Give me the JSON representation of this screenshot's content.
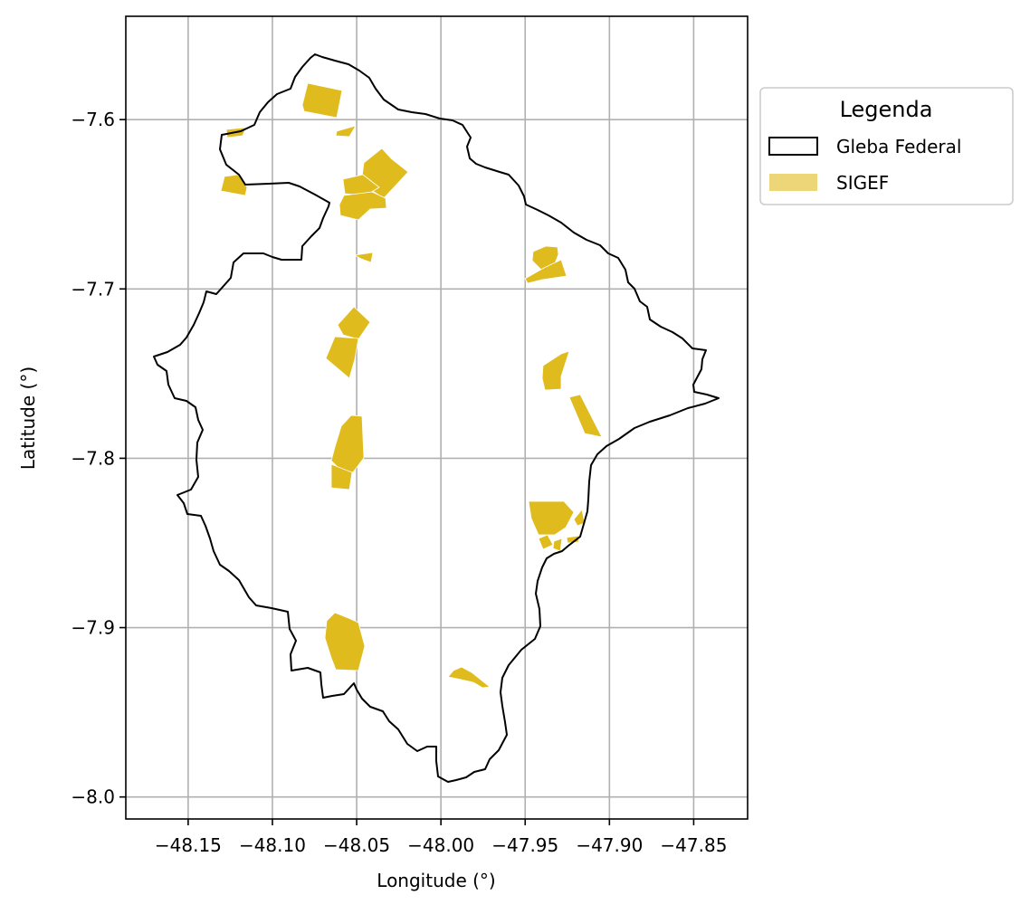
{
  "map": {
    "xlabel": "Longitude (°)",
    "ylabel": "Latitude (°)",
    "x_ticks": [
      -48.15,
      -48.1,
      -48.05,
      -48.0,
      -47.95,
      -47.9,
      -47.85
    ],
    "y_ticks": [
      -7.6,
      -7.7,
      -7.8,
      -7.9,
      -8.0
    ],
    "x_tick_labels": [
      "−48.15",
      "−48.10",
      "−48.05",
      "−48.00",
      "−47.95",
      "−47.90",
      "−47.85"
    ],
    "y_tick_labels": [
      "−7.6",
      "−7.7",
      "−7.8",
      "−7.9",
      "−8.0"
    ],
    "xlim": [
      -48.187,
      -47.818
    ],
    "ylim": [
      -8.013,
      -7.539
    ],
    "grid": true,
    "legend": {
      "title": "Legenda",
      "placement": "outside-top-right",
      "items": [
        {
          "label": "Gleba Federal",
          "symbol": "outline",
          "color": "#000000"
        },
        {
          "label": "SIGEF",
          "symbol": "fill",
          "color": "#e0bb1d"
        }
      ]
    },
    "colors": {
      "boundary": "#000000",
      "sigef_fill": "#e0bb1d",
      "grid": "#b0b0b0"
    }
  }
}
